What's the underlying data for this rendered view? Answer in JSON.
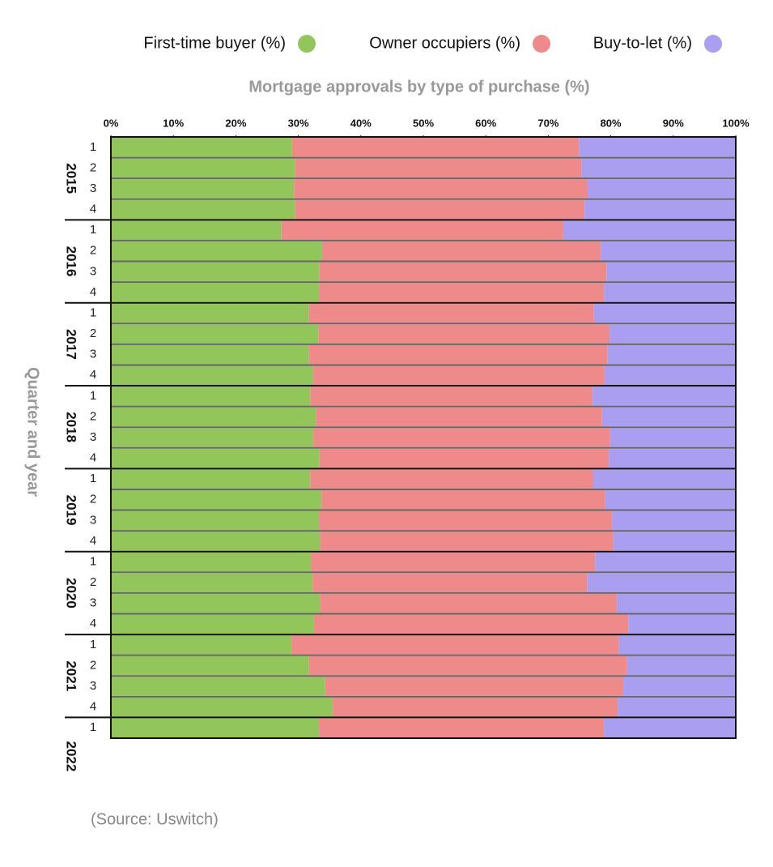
{
  "chart_data": {
    "type": "stacked-bar-horizontal",
    "title": "Mortgage approvals by type of purchase (%)",
    "y_label": "Quarter and year",
    "source": "(Source: Uswitch)",
    "groups": [
      {
        "label": "2015",
        "categories": [
          "1",
          "2",
          "3",
          "4"
        ]
      },
      {
        "label": "2016",
        "categories": [
          "1",
          "2",
          "3",
          "4"
        ]
      },
      {
        "label": "2017",
        "categories": [
          "1",
          "2",
          "3",
          "4"
        ]
      },
      {
        "label": "2018",
        "categories": [
          "1",
          "2",
          "3",
          "4"
        ]
      },
      {
        "label": "2019",
        "categories": [
          "1",
          "2",
          "3",
          "4"
        ]
      },
      {
        "label": "2020",
        "categories": [
          "1",
          "2",
          "3",
          "4"
        ]
      },
      {
        "label": "2021",
        "categories": [
          "1",
          "2",
          "3",
          "4"
        ]
      },
      {
        "label": "2022",
        "categories": [
          "1"
        ]
      }
    ],
    "series": [
      {
        "name": "First-time buyer (%)",
        "color": "#93c65a",
        "values": [
          29.0,
          29.5,
          29.3,
          29.5,
          27.3,
          33.8,
          33.4,
          33.3,
          31.7,
          33.2,
          31.7,
          32.4,
          31.9,
          32.8,
          32.4,
          33.4,
          31.9,
          33.7,
          33.3,
          33.5,
          32.0,
          32.3,
          33.5,
          32.5,
          28.9,
          31.7,
          34.3,
          35.5,
          33.3
        ]
      },
      {
        "name": "Owner occupiers (%)",
        "color": "#ee8a8a",
        "values": [
          45.9,
          45.8,
          47.0,
          46.3,
          45.1,
          44.6,
          45.9,
          45.6,
          45.6,
          46.6,
          47.8,
          46.6,
          45.2,
          45.8,
          47.5,
          46.3,
          45.3,
          45.4,
          46.9,
          46.9,
          45.5,
          43.9,
          47.5,
          50.3,
          52.4,
          50.9,
          47.7,
          45.6,
          45.6
        ]
      },
      {
        "name": "Buy-to-let (%)",
        "color": "#aa9ef0",
        "values": [
          25.1,
          24.7,
          23.7,
          24.2,
          27.6,
          21.6,
          20.7,
          21.1,
          22.7,
          20.2,
          20.5,
          21.0,
          22.9,
          21.4,
          20.1,
          20.3,
          22.8,
          20.9,
          19.8,
          19.6,
          22.5,
          23.8,
          19.0,
          17.2,
          18.7,
          17.4,
          18.0,
          18.9,
          21.1
        ]
      }
    ],
    "xlim": [
      0,
      100
    ],
    "xticks": [
      {
        "value": 0,
        "label": "0%"
      },
      {
        "value": 10,
        "label": "10%"
      },
      {
        "value": 20,
        "label": "20%"
      },
      {
        "value": 30,
        "label": "30%"
      },
      {
        "value": 40,
        "label": "40%"
      },
      {
        "value": 50,
        "label": "50%"
      },
      {
        "value": 60,
        "label": "60%"
      },
      {
        "value": 70,
        "label": "70%"
      },
      {
        "value": 80,
        "label": "80%"
      },
      {
        "value": 90,
        "label": "90%"
      },
      {
        "value": 100,
        "label": "100%"
      }
    ]
  }
}
